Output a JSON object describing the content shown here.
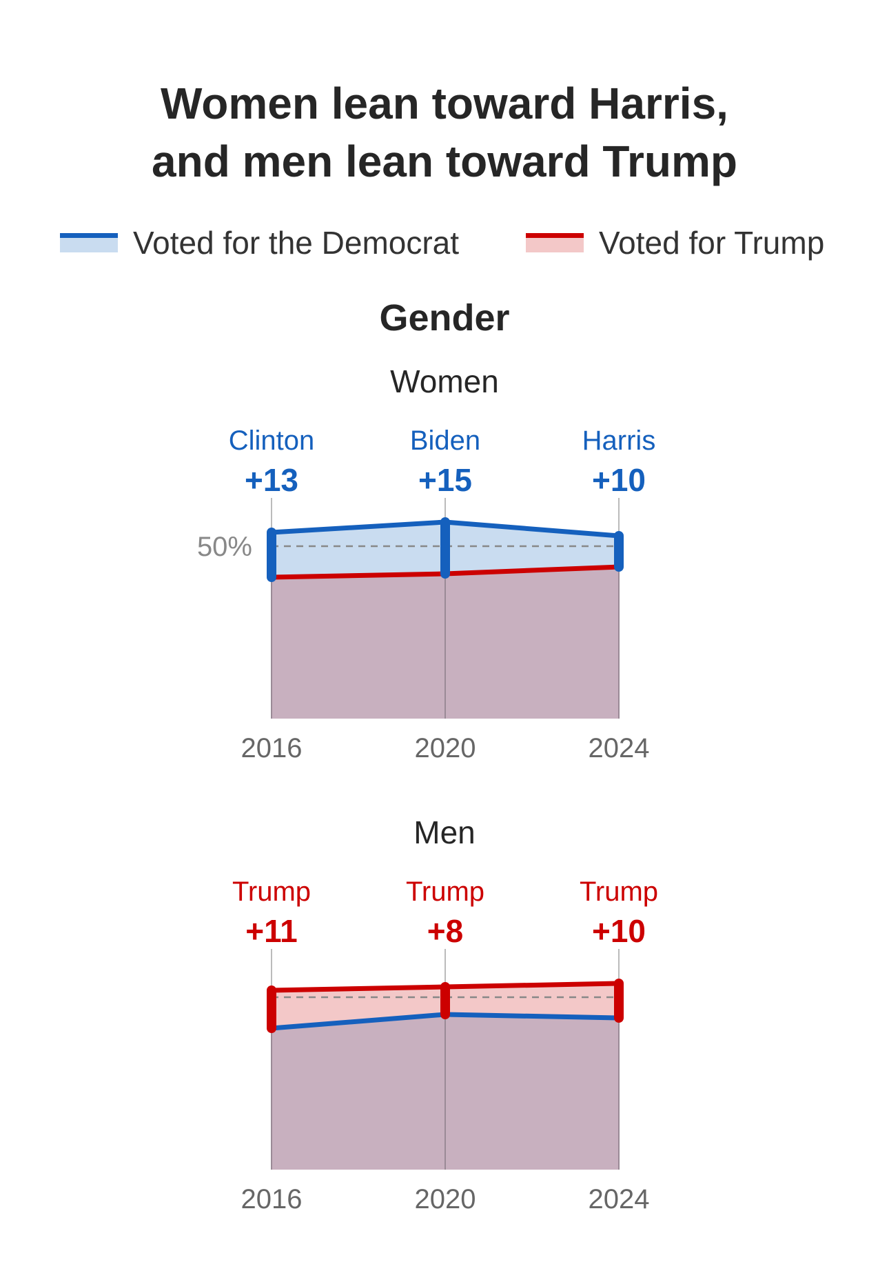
{
  "title": {
    "line1": "Women lean toward Harris,",
    "line2": "and men lean toward Trump"
  },
  "legend": [
    {
      "label": "Voted for the Democrat",
      "color": "#1560bd",
      "fill": "#c9dcf0"
    },
    {
      "label": "Voted for Trump",
      "color": "#cc0000",
      "fill": "#f3c8c8"
    }
  ],
  "section": "Gender",
  "colors": {
    "dem_line": "#1560bd",
    "dem_fill": "#c9dcf0",
    "rep_line": "#cc0000",
    "rep_fill": "#f3c8c8",
    "overlap_fill": "#c8b0bf",
    "axis_text": "#666666",
    "gridline": "#bbbbbb",
    "reference_line": "#888888"
  },
  "chart_data": [
    {
      "type": "area",
      "panel": "Women",
      "x": [
        "2016",
        "2020",
        "2024"
      ],
      "reference_label": "50%",
      "reference_value": 50,
      "ylim": [
        0,
        100
      ],
      "series": [
        {
          "name": "Voted for the Democrat",
          "values": [
            54,
            57,
            53
          ]
        },
        {
          "name": "Voted for Trump",
          "values": [
            41,
            42,
            44
          ]
        }
      ],
      "winner_labels": [
        {
          "name": "Clinton",
          "margin": "+13",
          "party": "dem"
        },
        {
          "name": "Biden",
          "margin": "+15",
          "party": "dem"
        },
        {
          "name": "Harris",
          "margin": "+10",
          "party": "dem"
        }
      ]
    },
    {
      "type": "area",
      "panel": "Men",
      "x": [
        "2016",
        "2020",
        "2024"
      ],
      "reference_value": 50,
      "ylim": [
        0,
        100
      ],
      "series": [
        {
          "name": "Voted for the Democrat",
          "values": [
            41,
            45,
            44
          ]
        },
        {
          "name": "Voted for Trump",
          "values": [
            52,
            53,
            54
          ]
        }
      ],
      "winner_labels": [
        {
          "name": "Trump",
          "margin": "+11",
          "party": "rep"
        },
        {
          "name": "Trump",
          "margin": "+8",
          "party": "rep"
        },
        {
          "name": "Trump",
          "margin": "+10",
          "party": "rep"
        }
      ]
    }
  ]
}
